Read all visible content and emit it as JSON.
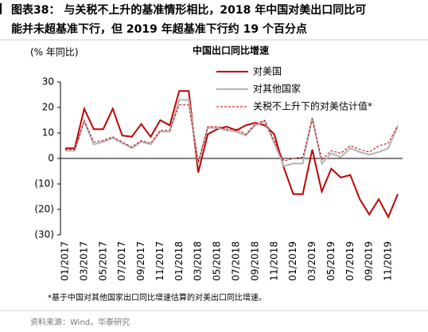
{
  "chart_data": {
    "type": "line",
    "title": [
      "图表38： 与关税不上升的基准情形相比，2018 年中国对美出口同比可",
      "能并未超基准下行，但 2019 年超基准下行约 19 个百分点"
    ],
    "subtitle": "中国出口同比增速",
    "y_label": "(% 年同比)",
    "note": "*基于中国对其他国家出口同比增速估算的对美出口同比增速。",
    "source": "资料来源：Wind，华泰研究",
    "categories": [
      "01/2017",
      null,
      "03/2017",
      null,
      "05/2017",
      null,
      "07/2017",
      null,
      "09/2017",
      null,
      "11/2017",
      null,
      "01/2018",
      null,
      "03/2018",
      null,
      "05/2018",
      null,
      "07/2018",
      null,
      "09/2018",
      null,
      "11/2018",
      null,
      "01/2019",
      null,
      "03/2019",
      null,
      "05/2019",
      null,
      "07/2019",
      null,
      "09/2019",
      null,
      "11/2019",
      null
    ],
    "series": [
      {
        "name": "对美国",
        "color": "#c00000",
        "dash": false,
        "values": [
          4,
          4,
          19.5,
          11.5,
          11.5,
          19.5,
          9,
          8.5,
          13.5,
          8.5,
          15,
          13,
          26.5,
          26.5,
          -5.5,
          9.5,
          11.5,
          12.5,
          11,
          13,
          14,
          13,
          9.5,
          -3.5,
          -14,
          -14,
          3.5,
          -13,
          -4,
          -7.5,
          -6.5,
          -16,
          -22,
          -16,
          -23,
          -14
        ]
      },
      {
        "name": "对其他国家",
        "color": "#b4b4b4",
        "dash": false,
        "values": [
          3,
          3,
          14.5,
          5.5,
          6.5,
          8,
          6,
          4,
          6.5,
          5.5,
          10.5,
          10.5,
          23,
          23,
          -2,
          12,
          12,
          11,
          10.5,
          9,
          13,
          14.5,
          6,
          -3,
          -2,
          -2,
          16,
          -2,
          2,
          0.5,
          4,
          2.5,
          1.5,
          2.5,
          4,
          12.5
        ]
      },
      {
        "name": "关税不上升下的对美估计值*",
        "color": "#c00000",
        "dash": true,
        "values": [
          3.5,
          3.5,
          15,
          6.5,
          7,
          8.5,
          6.5,
          4.5,
          7,
          6,
          11,
          11,
          21,
          21,
          -1.5,
          12.5,
          12.5,
          11.5,
          11.5,
          9.5,
          13.5,
          15,
          7,
          -1,
          0,
          0.5,
          15.5,
          -0.5,
          3,
          2,
          5,
          3.5,
          2.5,
          5,
          6,
          13
        ]
      }
    ],
    "ylim": [
      -30,
      30
    ],
    "yticks": [
      30,
      20,
      10,
      0,
      {
        "value": -10,
        "label": "(10)"
      },
      {
        "value": -20,
        "label": "(20)"
      },
      {
        "value": -30,
        "label": "(30)"
      }
    ],
    "legend": "upper right"
  }
}
